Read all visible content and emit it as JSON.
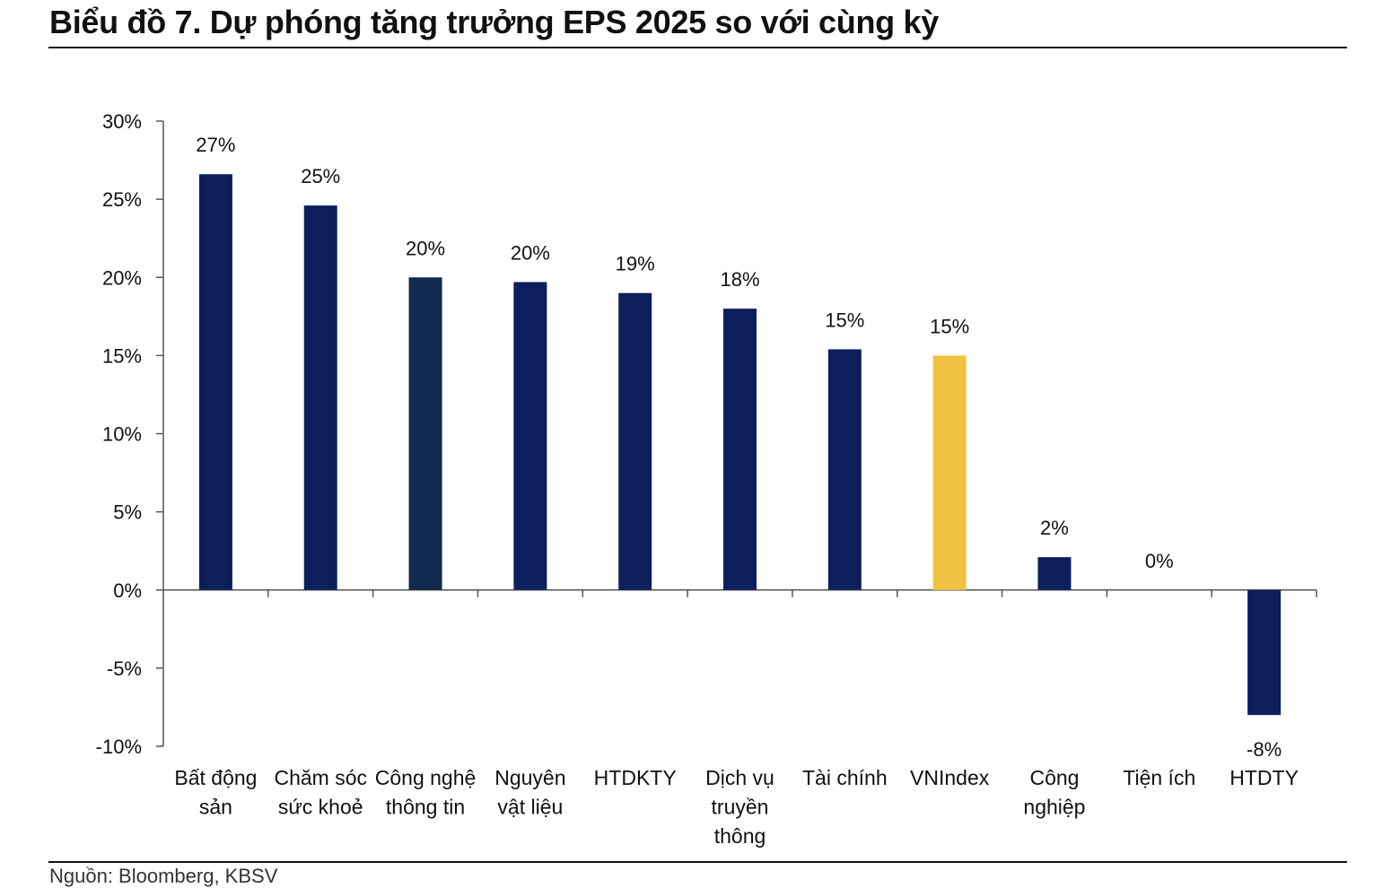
{
  "title": "Biểu đồ 7. Dự phóng tăng trưởng EPS 2025 so với cùng kỳ",
  "source": "Nguồn: Bloomberg, KBSV",
  "colors": {
    "bar": "#0c1f5c",
    "bar_alt": "#12294f",
    "highlight": "#f3c244",
    "axis": "#555555",
    "text": "#111111"
  },
  "chart_data": {
    "type": "bar",
    "title": "Biểu đồ 7. Dự phóng tăng trưởng EPS 2025 so với cùng kỳ",
    "xlabel": "",
    "ylabel": "",
    "ylim": [
      -10,
      30
    ],
    "yticks": [
      30,
      25,
      20,
      15,
      10,
      5,
      0,
      -5,
      -10
    ],
    "ytick_labels": [
      "30%",
      "25%",
      "20%",
      "15%",
      "10%",
      "5%",
      "0%",
      "-5%",
      "-10%"
    ],
    "grid": false,
    "legend": "none",
    "categories": [
      [
        "Bất động",
        "sản"
      ],
      [
        "Chăm sóc",
        "sức khoẻ"
      ],
      [
        "Công nghệ",
        "thông tin"
      ],
      [
        "Nguyên",
        "vật liệu"
      ],
      [
        "HTDKTY"
      ],
      [
        "Dịch vụ",
        "truyền",
        "thông"
      ],
      [
        "Tài chính"
      ],
      [
        "VNIndex"
      ],
      [
        "Công",
        "nghiệp"
      ],
      [
        "Tiện ích"
      ],
      [
        "HTDTY"
      ]
    ],
    "values": [
      26.6,
      24.6,
      20.0,
      19.7,
      19.0,
      18.0,
      15.4,
      15.0,
      2.1,
      0.0,
      -8.0
    ],
    "labels": [
      "27%",
      "25%",
      "20%",
      "20%",
      "19%",
      "18%",
      "15%",
      "15%",
      "2%",
      "0%",
      "-8%"
    ],
    "highlight_index": 7,
    "alt_color_index": 2
  }
}
